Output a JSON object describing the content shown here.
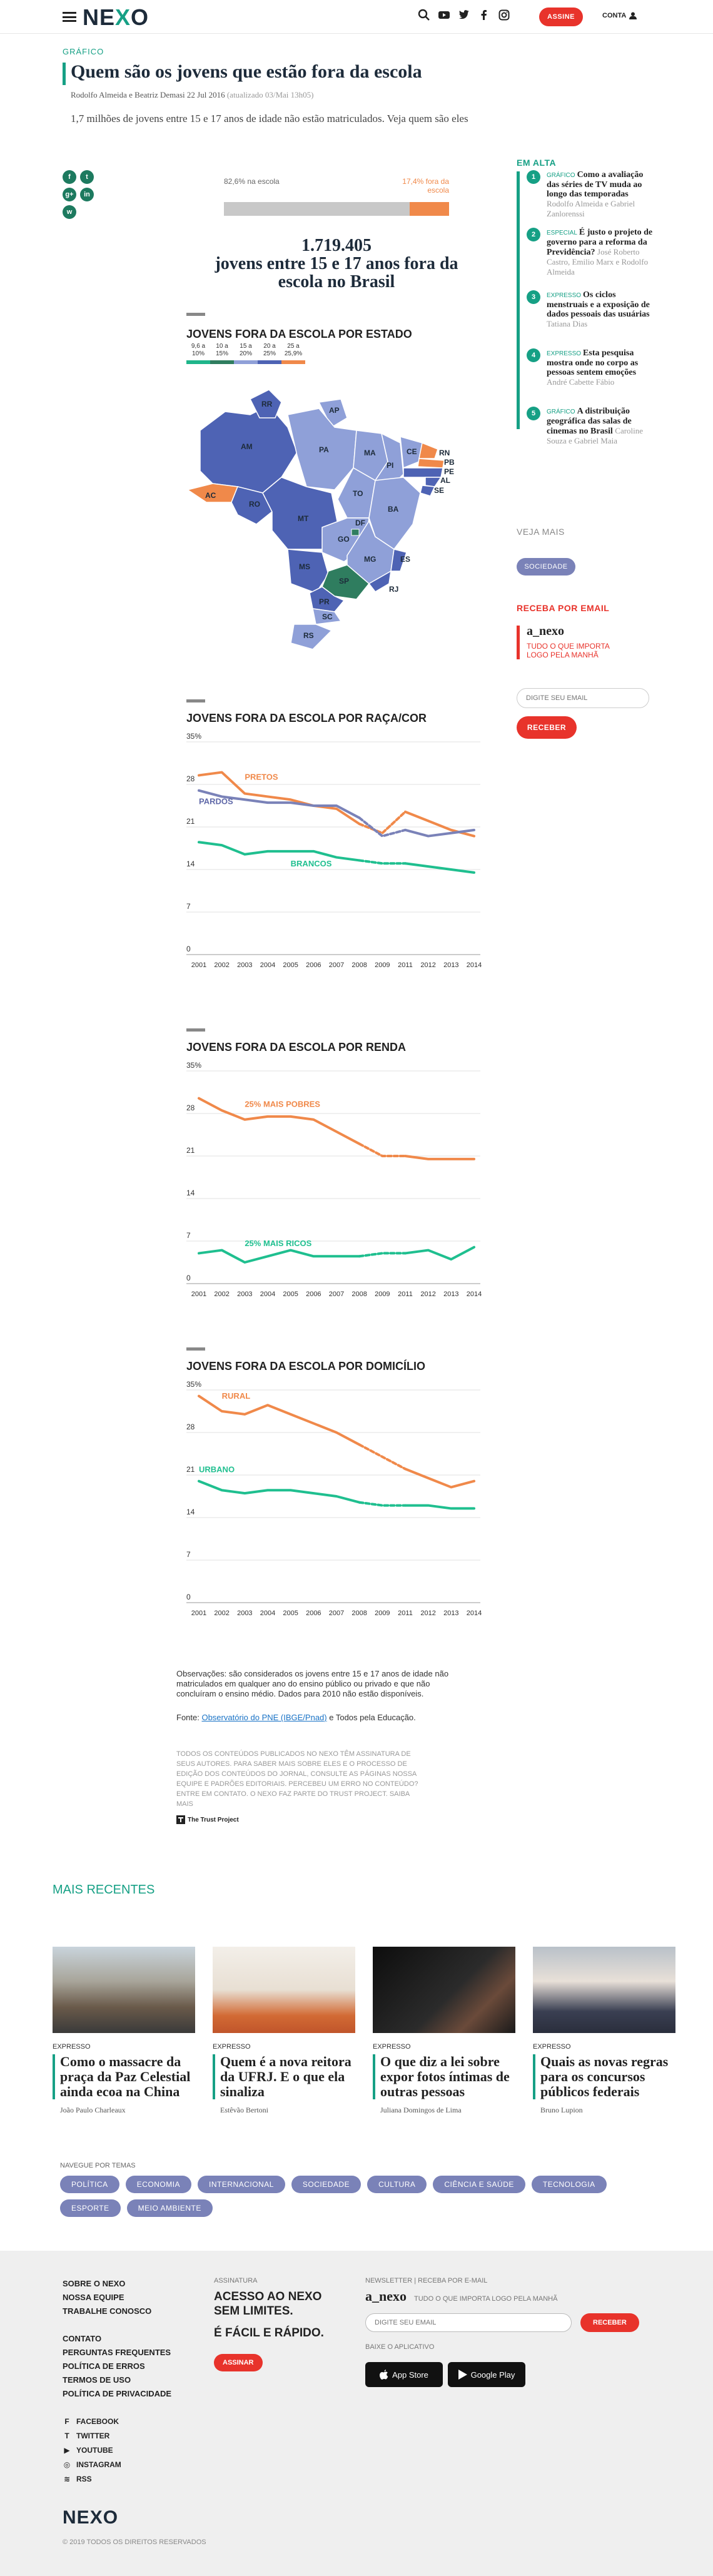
{
  "header": {
    "logo": "NEXO",
    "subscribe": "ASSINE",
    "account": "CONTA"
  },
  "article": {
    "kicker": "GRÁFICO",
    "title": "Quem são os jovens que estão fora da escola",
    "byline": "Rodolfo Almeida e Beatriz Demasi 22 Jul 2016",
    "updated": "(atualizado 03/Mai 13h05)",
    "lead": "1,7 milhões de jovens entre 15 e 17 anos de idade não estão matriculados. Veja quem são eles"
  },
  "share": [
    "f",
    "t",
    "g+",
    "in",
    "w"
  ],
  "stat": {
    "left_label": "82,6% na escola",
    "right_label": "17,4% fora da escola",
    "out_fraction": 0.174,
    "total": "1.719.405",
    "caption": "jovens entre 15 e 17 anos fora da escola no Brasil"
  },
  "map_section": {
    "title": "JOVENS FORA DA ESCOLA POR ESTADO",
    "scale": [
      "9,6 a 10%",
      "10 a 15%",
      "15 a 20%",
      "20 a 25%",
      "25 a 25,9%"
    ],
    "scale_colors": [
      "#1fb58a",
      "#2f7d5f",
      "#8fa0d8",
      "#4e63b4",
      "#f0894a"
    ],
    "states": [
      "RR",
      "AP",
      "AM",
      "PA",
      "MA",
      "CE",
      "RN",
      "PB",
      "PE",
      "AL",
      "SE",
      "PI",
      "TO",
      "BA",
      "AC",
      "RO",
      "MT",
      "GO",
      "DF",
      "MG",
      "ES",
      "MS",
      "SP",
      "RJ",
      "PR",
      "SC",
      "RS"
    ]
  },
  "chart_data": [
    {
      "type": "line",
      "title": "JOVENS FORA DA ESCOLA POR RAÇA/COR",
      "x": [
        "2001",
        "2002",
        "2003",
        "2004",
        "2005",
        "2006",
        "2007",
        "2008",
        "2009",
        "2011",
        "2012",
        "2013",
        "2014"
      ],
      "yticks": [
        "35%",
        "28",
        "21",
        "14",
        "7",
        "0"
      ],
      "ylim": [
        0,
        35
      ],
      "series": [
        {
          "name": "PRETOS",
          "color": "#f0894a",
          "values": [
            29.5,
            30,
            26.5,
            26,
            25.5,
            24.5,
            24,
            21.5,
            20,
            23.5,
            22,
            20.5,
            19.5
          ]
        },
        {
          "name": "PARDOS",
          "color": "#7a82b8",
          "values": [
            27,
            26,
            25.5,
            25,
            25,
            24.5,
            24.5,
            22.5,
            19.5,
            20.5,
            19.5,
            20,
            20.5
          ]
        },
        {
          "name": "BRANCOS",
          "color": "#1fbf8f",
          "values": [
            18.5,
            18,
            16.5,
            17,
            17,
            17,
            16,
            15.5,
            15,
            15,
            14.5,
            14,
            13.5
          ]
        }
      ]
    },
    {
      "type": "line",
      "title": "JOVENS FORA DA ESCOLA POR RENDA",
      "x": [
        "2001",
        "2002",
        "2003",
        "2004",
        "2005",
        "2006",
        "2007",
        "2008",
        "2009",
        "2011",
        "2012",
        "2013",
        "2014"
      ],
      "yticks": [
        "35%",
        "28",
        "21",
        "14",
        "7",
        "0"
      ],
      "ylim": [
        0,
        35
      ],
      "series": [
        {
          "name": "25% MAIS POBRES",
          "color": "#f0894a",
          "values": [
            30.5,
            28.5,
            27,
            27.5,
            27.5,
            27,
            25,
            23,
            21,
            21,
            20.5,
            20.5,
            20.5
          ]
        },
        {
          "name": "25% MAIS RICOS",
          "color": "#1fbf8f",
          "values": [
            5,
            5.5,
            3.5,
            4.5,
            5.5,
            4.5,
            4.5,
            4.5,
            5,
            5,
            5.5,
            4,
            6
          ]
        }
      ]
    },
    {
      "type": "line",
      "title": "JOVENS FORA DA ESCOLA POR DOMICÍLIO",
      "x": [
        "2001",
        "2002",
        "2003",
        "2004",
        "2005",
        "2006",
        "2007",
        "2008",
        "2009",
        "2011",
        "2012",
        "2013",
        "2014"
      ],
      "yticks": [
        "35%",
        "28",
        "21",
        "14",
        "7",
        "0"
      ],
      "ylim": [
        0,
        35
      ],
      "series": [
        {
          "name": "RURAL",
          "color": "#f0894a",
          "values": [
            34,
            31.5,
            31,
            32.5,
            31,
            29.5,
            28,
            26,
            24,
            22,
            20.5,
            19,
            20
          ]
        },
        {
          "name": "URBANO",
          "color": "#1fbf8f",
          "values": [
            20,
            18.5,
            18,
            18.5,
            18.5,
            18,
            17.5,
            16.5,
            16,
            16,
            16,
            15.5,
            15.5
          ]
        }
      ]
    }
  ],
  "notes": {
    "obs": "Observações: são considerados os jovens entre 15 e 17 anos de idade não matriculados em qualquer ano do ensino público ou privado e que não concluíram o ensino médio. Dados para 2010 não estão disponíveis.",
    "fonte_prefix": "Fonte: ",
    "fonte_link": "Observatório do PNE (IBGE/Pnad)",
    "fonte_suffix": " e Todos pela Educação.",
    "trust": "Todos os conteúdos publicados no Nexo têm assinatura de seus autores. Para saber mais sobre eles e o processo de edição dos conteúdos do jornal, consulte as páginas Nossa equipe e Padrões editoriais. Percebeu um erro no conteúdo? Entre em contato. O Nexo faz parte do Trust Project. Saiba mais",
    "trust_logo": "The Trust Project"
  },
  "sidebar": {
    "em_alta": "EM ALTA",
    "items": [
      {
        "num": "1",
        "cat": "GRÁFICO",
        "headline": "Como a avaliação das séries de TV muda ao longo das temporadas",
        "author": "Rodolfo Almeida e Gabriel Zanlorenssi"
      },
      {
        "num": "2",
        "cat": "ESPECIAL",
        "headline": "É justo o projeto de governo para a reforma da Previdência?",
        "author": "José Roberto Castro, Emilio Marx e Rodolfo Almeida"
      },
      {
        "num": "3",
        "cat": "EXPRESSO",
        "headline": "Os ciclos menstruais e a exposição de dados pessoais das usuárias",
        "author": "Tatiana Dias"
      },
      {
        "num": "4",
        "cat": "EXPRESSO",
        "headline": "Esta pesquisa mostra onde no corpo as pessoas sentem emoções",
        "author": "André Cabette Fábio"
      },
      {
        "num": "5",
        "cat": "GRÁFICO",
        "headline": "A distribuição geográfica das salas de cinemas no Brasil",
        "author": "Caroline Souza e Gabriel Maia"
      }
    ],
    "veja_mais": "VEJA MAIS",
    "veja_tag": "SOCIEDADE",
    "receba": "RECEBA POR EMAIL",
    "newsletter_name": "a_nexo",
    "newsletter_sub": "TUDO O QUE IMPORTA LOGO PELA MANHÃ",
    "email_placeholder": "DIGITE SEU EMAIL",
    "receber": "RECEBER"
  },
  "recentes": {
    "title": "MAIS RECENTES",
    "cards": [
      {
        "cat": "EXPRESSO",
        "headline": "Como o massacre da praça da Paz Celestial ainda ecoa na China",
        "author": "João Paulo Charleaux"
      },
      {
        "cat": "EXPRESSO",
        "headline": "Quem é a nova reitora da UFRJ. E o que ela sinaliza",
        "author": "Estêvão Bertoni"
      },
      {
        "cat": "EXPRESSO",
        "headline": "O que diz a lei sobre expor fotos íntimas de outras pessoas",
        "author": "Juliana Domingos de Lima"
      },
      {
        "cat": "EXPRESSO",
        "headline": "Quais as novas regras para os concursos públicos federais",
        "author": "Bruno Lupion"
      }
    ]
  },
  "temas": {
    "label": "NAVEGUE POR TEMAS",
    "items": [
      "POLÍTICA",
      "ECONOMIA",
      "INTERNACIONAL",
      "SOCIEDADE",
      "CULTURA",
      "CIÊNCIA E SAÚDE",
      "TECNOLOGIA",
      "ESPORTE",
      "MEIO AMBIENTE"
    ]
  },
  "footer": {
    "col1": [
      "SOBRE O NEXO",
      "NOSSA EQUIPE",
      "TRABALHE CONOSCO"
    ],
    "col1b": [
      "CONTATO",
      "PERGUNTAS FREQUENTES",
      "POLÍTICA DE ERROS",
      "TERMOS DE USO",
      "POLÍTICA DE PRIVACIDADE"
    ],
    "social": [
      "FACEBOOK",
      "TWITTER",
      "YOUTUBE",
      "INSTAGRAM",
      "RSS"
    ],
    "assinatura_label": "ASSINATURA",
    "assinatura_big1": "ACESSO AO NEXO SEM LIMITES.",
    "assinatura_big2": "É FÁCIL E RÁPIDO.",
    "assinar": "ASSINAR",
    "newsletter_label": "NEWSLETTER | RECEBA POR E-MAIL",
    "newsletter_name": "a_nexo",
    "newsletter_sub": "TUDO O QUE IMPORTA LOGO PELA MANHÃ",
    "email_placeholder": "DIGITE SEU EMAIL",
    "receber": "RECEBER",
    "app_label": "BAIXE O APLICATIVO",
    "appstore": "App Store",
    "googleplay": "Google Play",
    "logo": "NEXO",
    "copyright": "© 2019 TODOS OS DIREITOS RESERVADOS"
  }
}
